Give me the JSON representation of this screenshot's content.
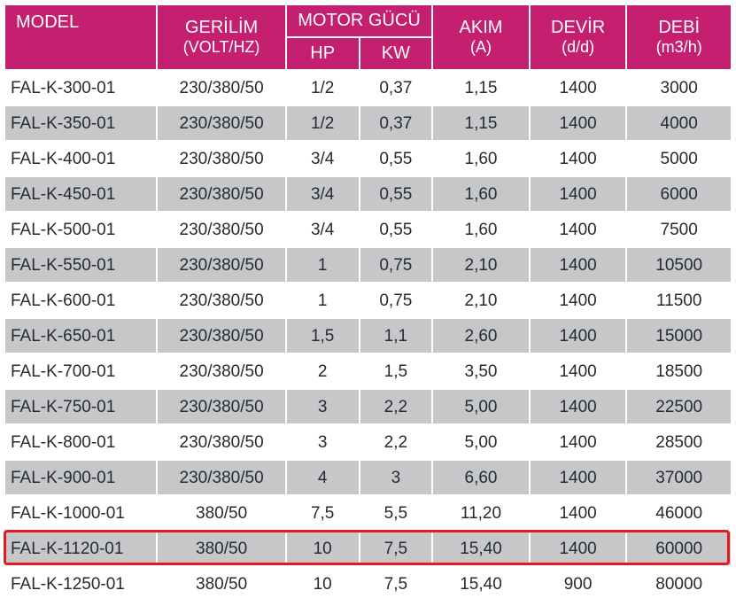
{
  "table": {
    "headers": {
      "model": "MODEL",
      "gerilim": "GERİLİM",
      "gerilim_sub": "(VOLT/HZ)",
      "motor_gucu": "MOTOR GÜCÜ",
      "hp": "HP",
      "kw": "KW",
      "akim": "AKIM",
      "akim_sub": "(A)",
      "devir": "DEVİR",
      "devir_sub": "(d/d)",
      "debi": "DEBİ",
      "debi_sub": "(m3/h)"
    },
    "column_widths_pct": [
      19,
      16,
      9,
      9,
      12,
      12,
      13
    ],
    "header_bg": "#c4206f",
    "header_fg": "#ffffff",
    "row_alt_bg": "#c6c7c9",
    "row_bg": "#ffffff",
    "text_color": "#262a33",
    "highlight_color": "#e11b22",
    "highlight_row_index": 13,
    "rows": [
      {
        "model": "FAL-K-300-01",
        "gerilim": "230/380/50",
        "hp": "1/2",
        "kw": "0,37",
        "akim": "1,15",
        "devir": "1400",
        "debi": "3000"
      },
      {
        "model": "FAL-K-350-01",
        "gerilim": "230/380/50",
        "hp": "1/2",
        "kw": "0,37",
        "akim": "1,15",
        "devir": "1400",
        "debi": "4000"
      },
      {
        "model": "FAL-K-400-01",
        "gerilim": "230/380/50",
        "hp": "3/4",
        "kw": "0,55",
        "akim": "1,60",
        "devir": "1400",
        "debi": "5000"
      },
      {
        "model": "FAL-K-450-01",
        "gerilim": "230/380/50",
        "hp": "3/4",
        "kw": "0,55",
        "akim": "1,60",
        "devir": "1400",
        "debi": "6000"
      },
      {
        "model": "FAL-K-500-01",
        "gerilim": "230/380/50",
        "hp": "3/4",
        "kw": "0,55",
        "akim": "1,60",
        "devir": "1400",
        "debi": "7500"
      },
      {
        "model": "FAL-K-550-01",
        "gerilim": "230/380/50",
        "hp": "1",
        "kw": "0,75",
        "akim": "2,10",
        "devir": "1400",
        "debi": "10500"
      },
      {
        "model": "FAL-K-600-01",
        "gerilim": "230/380/50",
        "hp": "1",
        "kw": "0,75",
        "akim": "2,10",
        "devir": "1400",
        "debi": "11500"
      },
      {
        "model": "FAL-K-650-01",
        "gerilim": "230/380/50",
        "hp": "1,5",
        "kw": "1,1",
        "akim": "2,60",
        "devir": "1400",
        "debi": "15000"
      },
      {
        "model": "FAL-K-700-01",
        "gerilim": "230/380/50",
        "hp": "2",
        "kw": "1,5",
        "akim": "3,50",
        "devir": "1400",
        "debi": "18500"
      },
      {
        "model": "FAL-K-750-01",
        "gerilim": "230/380/50",
        "hp": "3",
        "kw": "2,2",
        "akim": "5,00",
        "devir": "1400",
        "debi": "22500"
      },
      {
        "model": "FAL-K-800-01",
        "gerilim": "230/380/50",
        "hp": "3",
        "kw": "2,2",
        "akim": "5,00",
        "devir": "1400",
        "debi": "28500"
      },
      {
        "model": "FAL-K-900-01",
        "gerilim": "230/380/50",
        "hp": "4",
        "kw": "3",
        "akim": "6,60",
        "devir": "1400",
        "debi": "37000"
      },
      {
        "model": "FAL-K-1000-01",
        "gerilim": "380/50",
        "hp": "7,5",
        "kw": "5,5",
        "akim": "11,20",
        "devir": "1400",
        "debi": "46000"
      },
      {
        "model": "FAL-K-1120-01",
        "gerilim": "380/50",
        "hp": "10",
        "kw": "7,5",
        "akim": "15,40",
        "devir": "1400",
        "debi": "60000"
      },
      {
        "model": "FAL-K-1250-01",
        "gerilim": "380/50",
        "hp": "10",
        "kw": "7,5",
        "akim": "15,40",
        "devir": "900",
        "debi": "80000"
      }
    ]
  }
}
